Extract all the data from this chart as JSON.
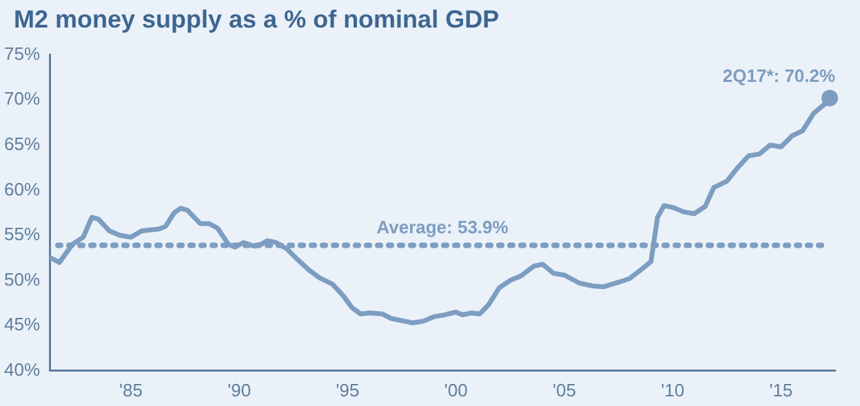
{
  "chart_data": {
    "type": "line",
    "title": "M2 money supply as a % of nominal GDP",
    "x": [
      1981.3,
      1981.7,
      1982.3,
      1982.8,
      1983.2,
      1983.5,
      1984,
      1984.5,
      1985,
      1985.5,
      1986.3,
      1986.6,
      1987,
      1987.3,
      1987.6,
      1988.2,
      1988.6,
      1989,
      1989.5,
      1989.8,
      1990.2,
      1990.7,
      1991,
      1991.3,
      1991.7,
      1992.2,
      1992.7,
      1993.2,
      1993.7,
      1994.3,
      1994.8,
      1995.2,
      1995.6,
      1996,
      1996.6,
      1997,
      1997.6,
      1998,
      1998.5,
      1999,
      1999.5,
      2000,
      2000.3,
      2000.7,
      2001.1,
      2001.5,
      2002,
      2002.5,
      2003,
      2003.6,
      2004,
      2004.5,
      2005,
      2005.7,
      2006.3,
      2006.8,
      2007.5,
      2008,
      2008.6,
      2009,
      2009.3,
      2009.6,
      2010,
      2010.5,
      2011,
      2011.5,
      2011.9,
      2012.5,
      2013,
      2013.5,
      2014,
      2014.5,
      2015,
      2015.5,
      2016,
      2016.5,
      2017,
      2017.25
    ],
    "series": [
      {
        "color": "#7d9dc1",
        "values": [
          52.5,
          52,
          54,
          54.8,
          57,
          56.8,
          55.5,
          55,
          54.8,
          55.5,
          55.7,
          56,
          57.5,
          58,
          57.8,
          56.3,
          56.3,
          55.8,
          54,
          53.7,
          54.2,
          53.8,
          54,
          54.4,
          54.2,
          53.5,
          52.3,
          51.2,
          50.3,
          49.6,
          48.3,
          47,
          46.3,
          46.4,
          46.3,
          45.8,
          45.5,
          45.3,
          45.5,
          46,
          46.2,
          46.5,
          46.2,
          46.4,
          46.3,
          47.3,
          49.2,
          50,
          50.5,
          51.6,
          51.8,
          50.8,
          50.6,
          49.7,
          49.4,
          49.3,
          49.8,
          50.2,
          51.3,
          52.1,
          57,
          58.3,
          58.1,
          57.6,
          57.4,
          58.2,
          60.3,
          61,
          62.5,
          63.8,
          64,
          65,
          64.8,
          66,
          66.6,
          68.5,
          69.5,
          70.2
        ]
      }
    ],
    "xlim": [
      1981.25,
      2017.5
    ],
    "xticks": [
      {
        "value": 1985,
        "label": "'85"
      },
      {
        "value": 1990,
        "label": "'90"
      },
      {
        "value": 1995,
        "label": "'95"
      },
      {
        "value": 2000,
        "label": "'00"
      },
      {
        "value": 2005,
        "label": "'05"
      },
      {
        "value": 2010,
        "label": "'10"
      },
      {
        "value": 2015,
        "label": "'15"
      }
    ],
    "ylim": [
      40,
      75
    ],
    "yticks": [
      {
        "value": 40,
        "label": "40%"
      },
      {
        "value": 45,
        "label": "45%"
      },
      {
        "value": 50,
        "label": "50%"
      },
      {
        "value": 55,
        "label": "55%"
      },
      {
        "value": 60,
        "label": "60%"
      },
      {
        "value": 65,
        "label": "65%"
      },
      {
        "value": 70,
        "label": "70%"
      },
      {
        "value": 75,
        "label": "75%"
      }
    ],
    "ref_lines": [
      {
        "axis": "y",
        "value": 53.9,
        "label": "Average: 53.9%",
        "color": "#7d9dc1",
        "line_style": "dotted"
      }
    ],
    "annotations": [
      {
        "text": "2Q17*: 70.2%",
        "x": 2017.25,
        "y": 70.2
      }
    ],
    "grid": false,
    "legend": false,
    "marker": "none",
    "line_style": "solid"
  }
}
